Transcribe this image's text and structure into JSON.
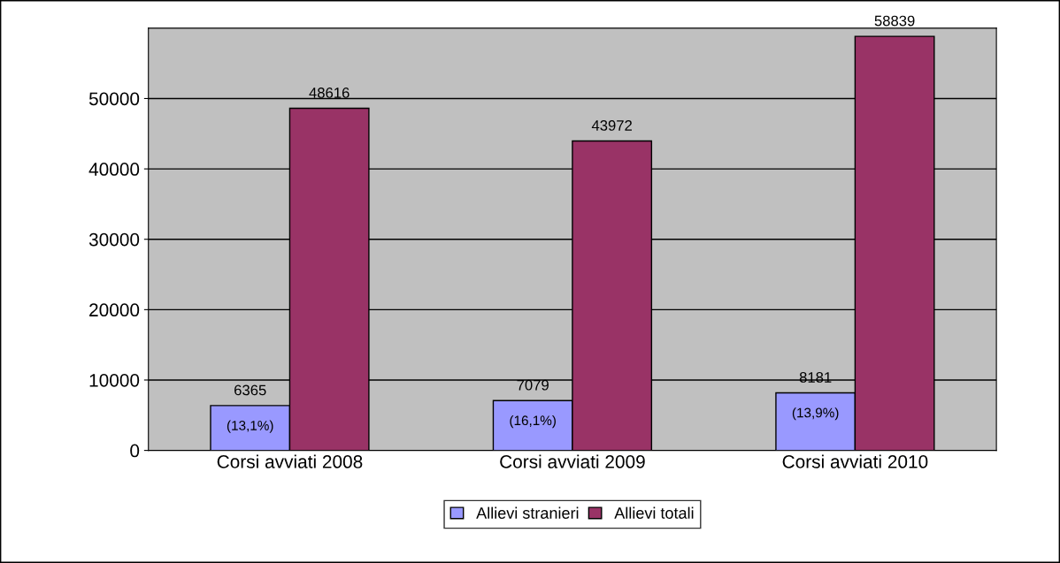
{
  "chart_data": {
    "type": "bar",
    "categories": [
      "Corsi avviati 2008",
      "Corsi avviati 2009",
      "Corsi avviati 2010"
    ],
    "series": [
      {
        "name": "Allievi stranieri",
        "color": "#9999ff",
        "values": [
          6365,
          7079,
          8181
        ]
      },
      {
        "name": "Allievi totali",
        "color": "#993366",
        "values": [
          48616,
          43972,
          58839
        ]
      }
    ],
    "ylim": [
      0,
      60000
    ],
    "yticks": [
      0,
      10000,
      20000,
      30000,
      40000,
      50000
    ],
    "grid": "y",
    "legend": "bottom",
    "data_labels": true,
    "annotations": [
      {
        "text": "(13,1%)",
        "x": "Corsi avviati 2008",
        "y": 6365
      },
      {
        "text": "(16,1%)",
        "x": "Corsi avviati 2009",
        "y": 7079
      },
      {
        "text": "(13,9%)",
        "x": "Corsi avviati 2010",
        "y": 8181
      }
    ]
  }
}
